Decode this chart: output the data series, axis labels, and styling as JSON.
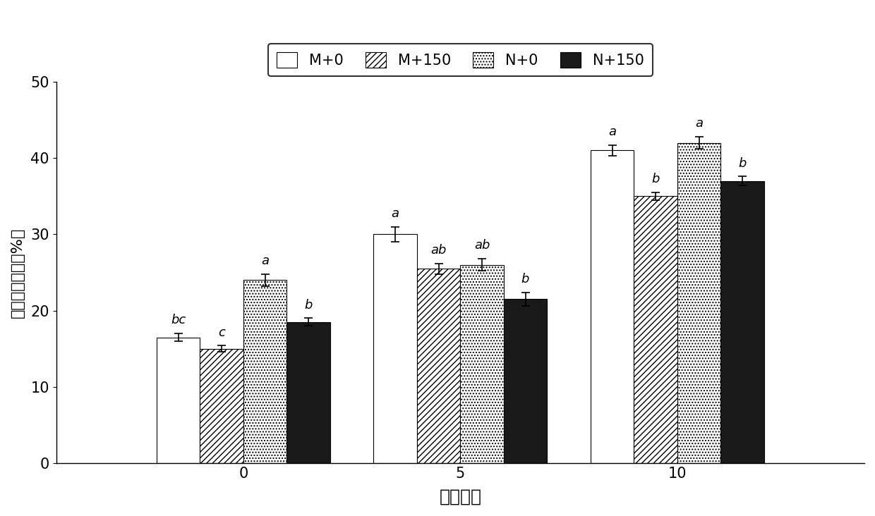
{
  "groups": [
    "0",
    "5",
    "10"
  ],
  "series": [
    "M+0",
    "M+150",
    "N+0",
    "N+150"
  ],
  "values": [
    [
      16.5,
      15.0,
      24.0,
      18.5
    ],
    [
      30.0,
      25.5,
      26.0,
      21.5
    ],
    [
      41.0,
      35.0,
      42.0,
      37.0
    ]
  ],
  "errors": [
    [
      0.5,
      0.4,
      0.8,
      0.5
    ],
    [
      1.0,
      0.7,
      0.8,
      0.9
    ],
    [
      0.7,
      0.5,
      0.8,
      0.6
    ]
  ],
  "significance_labels": [
    [
      "bc",
      "c",
      "a",
      "b"
    ],
    [
      "a",
      "ab",
      "ab",
      "b"
    ],
    [
      "a",
      "b",
      "a",
      "b"
    ]
  ],
  "ylabel": "电解质渗透率（%）",
  "xlabel": "干旱天数",
  "ylim": [
    0,
    50
  ],
  "yticks": [
    0,
    10,
    20,
    30,
    40,
    50
  ],
  "bar_width": 0.16,
  "group_positions": [
    0.3,
    1.1,
    1.9
  ],
  "colors": [
    "#ffffff",
    "#ffffff",
    "#ffffff",
    "#1a1a1a"
  ],
  "hatches": [
    "",
    "////",
    "....",
    "===="
  ],
  "edgecolor": "#000000",
  "figsize": [
    12.4,
    7.32
  ],
  "dpi": 100,
  "sig_fontsize": 13,
  "axis_fontsize": 16,
  "xlabel_fontsize": 18,
  "tick_fontsize": 15,
  "legend_fontsize": 15
}
